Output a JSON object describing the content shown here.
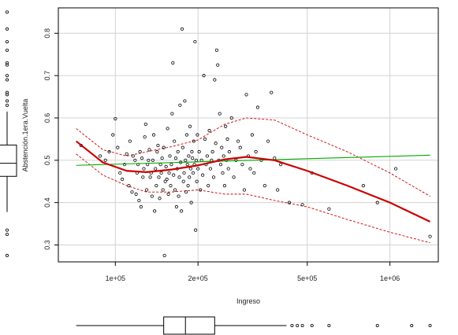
{
  "chart_data": {
    "type": "scatter",
    "xlabel": "Ingreso",
    "ylabel": "Abstención.1era.Vuelta",
    "x_scale": "log",
    "xlim": [
      62000,
      1500000
    ],
    "ylim": [
      0.26,
      0.86
    ],
    "x_ticks": [
      {
        "value": 100000,
        "label": "1e+05"
      },
      {
        "value": 200000,
        "label": "2e+05"
      },
      {
        "value": 500000,
        "label": "5e+05"
      },
      {
        "value": 1000000,
        "label": "1e+06"
      }
    ],
    "y_ticks": [
      {
        "value": 0.3,
        "label": "0.3"
      },
      {
        "value": 0.4,
        "label": "0.4"
      },
      {
        "value": 0.5,
        "label": "0.5"
      },
      {
        "value": 0.6,
        "label": "0.6"
      },
      {
        "value": 0.7,
        "label": "0.7"
      },
      {
        "value": 0.8,
        "label": "0.8"
      }
    ],
    "grid": true,
    "points": [
      [
        75000,
        0.535
      ],
      [
        88000,
        0.51
      ],
      [
        92000,
        0.5
      ],
      [
        95000,
        0.52
      ],
      [
        98000,
        0.56
      ],
      [
        100000,
        0.598
      ],
      [
        102000,
        0.53
      ],
      [
        104000,
        0.47
      ],
      [
        106000,
        0.455
      ],
      [
        108000,
        0.49
      ],
      [
        110000,
        0.515
      ],
      [
        112000,
        0.44
      ],
      [
        113000,
        0.545
      ],
      [
        115000,
        0.425
      ],
      [
        116000,
        0.51
      ],
      [
        118000,
        0.5
      ],
      [
        119000,
        0.42
      ],
      [
        120000,
        0.47
      ],
      [
        121000,
        0.49
      ],
      [
        122000,
        0.405
      ],
      [
        123000,
        0.52
      ],
      [
        124000,
        0.39
      ],
      [
        125000,
        0.505
      ],
      [
        126000,
        0.46
      ],
      [
        127000,
        0.48
      ],
      [
        128000,
        0.555
      ],
      [
        129000,
        0.585
      ],
      [
        130000,
        0.43
      ],
      [
        131000,
        0.49
      ],
      [
        132000,
        0.5
      ],
      [
        133000,
        0.525
      ],
      [
        134000,
        0.46
      ],
      [
        135000,
        0.47
      ],
      [
        136000,
        0.415
      ],
      [
        137000,
        0.5
      ],
      [
        138000,
        0.56
      ],
      [
        139000,
        0.38
      ],
      [
        140000,
        0.48
      ],
      [
        141000,
        0.44
      ],
      [
        142000,
        0.52
      ],
      [
        143000,
        0.535
      ],
      [
        144000,
        0.46
      ],
      [
        145000,
        0.41
      ],
      [
        146000,
        0.49
      ],
      [
        147000,
        0.47
      ],
      [
        148000,
        0.505
      ],
      [
        149000,
        0.43
      ],
      [
        150000,
        0.53
      ],
      [
        151000,
        0.275
      ],
      [
        152000,
        0.45
      ],
      [
        153000,
        0.485
      ],
      [
        154000,
        0.455
      ],
      [
        155000,
        0.575
      ],
      [
        156000,
        0.42
      ],
      [
        157000,
        0.47
      ],
      [
        158000,
        0.51
      ],
      [
        159000,
        0.44
      ],
      [
        160000,
        0.49
      ],
      [
        161000,
        0.61
      ],
      [
        162000,
        0.73
      ],
      [
        163000,
        0.465
      ],
      [
        164000,
        0.545
      ],
      [
        165000,
        0.43
      ],
      [
        166000,
        0.505
      ],
      [
        167000,
        0.39
      ],
      [
        168000,
        0.48
      ],
      [
        169000,
        0.52
      ],
      [
        170000,
        0.415
      ],
      [
        171000,
        0.46
      ],
      [
        172000,
        0.63
      ],
      [
        173000,
        0.495
      ],
      [
        174000,
        0.38
      ],
      [
        175000,
        0.81
      ],
      [
        176000,
        0.53
      ],
      [
        177000,
        0.45
      ],
      [
        178000,
        0.47
      ],
      [
        179000,
        0.64
      ],
      [
        180000,
        0.5
      ],
      [
        181000,
        0.425
      ],
      [
        182000,
        0.56
      ],
      [
        183000,
        0.49
      ],
      [
        184000,
        0.44
      ],
      [
        185000,
        0.51
      ],
      [
        186000,
        0.46
      ],
      [
        187000,
        0.58
      ],
      [
        188000,
        0.48
      ],
      [
        189000,
        0.4
      ],
      [
        190000,
        0.52
      ],
      [
        191000,
        0.505
      ],
      [
        192000,
        0.47
      ],
      [
        193000,
        0.545
      ],
      [
        194000,
        0.49
      ],
      [
        195000,
        0.78
      ],
      [
        196000,
        0.335
      ],
      [
        197000,
        0.5
      ],
      [
        198000,
        0.45
      ],
      [
        199000,
        0.56
      ],
      [
        200000,
        0.48
      ],
      [
        202000,
        0.52
      ],
      [
        204000,
        0.43
      ],
      [
        206000,
        0.5
      ],
      [
        208000,
        0.465
      ],
      [
        210000,
        0.7
      ],
      [
        212000,
        0.55
      ],
      [
        214000,
        0.49
      ],
      [
        216000,
        0.51
      ],
      [
        218000,
        0.44
      ],
      [
        220000,
        0.57
      ],
      [
        222000,
        0.48
      ],
      [
        224000,
        0.5
      ],
      [
        226000,
        0.52
      ],
      [
        228000,
        0.46
      ],
      [
        230000,
        0.69
      ],
      [
        232000,
        0.54
      ],
      [
        234000,
        0.76
      ],
      [
        236000,
        0.725
      ],
      [
        238000,
        0.5
      ],
      [
        240000,
        0.61
      ],
      [
        242000,
        0.49
      ],
      [
        244000,
        0.53
      ],
      [
        246000,
        0.47
      ],
      [
        248000,
        0.51
      ],
      [
        250000,
        0.44
      ],
      [
        252000,
        0.58
      ],
      [
        254000,
        0.5
      ],
      [
        256000,
        0.55
      ],
      [
        258000,
        0.48
      ],
      [
        260000,
        0.52
      ],
      [
        265000,
        0.6
      ],
      [
        270000,
        0.46
      ],
      [
        275000,
        0.5
      ],
      [
        280000,
        0.545
      ],
      [
        285000,
        0.53
      ],
      [
        290000,
        0.49
      ],
      [
        295000,
        0.43
      ],
      [
        300000,
        0.655
      ],
      [
        305000,
        0.51
      ],
      [
        310000,
        0.48
      ],
      [
        315000,
        0.56
      ],
      [
        320000,
        0.47
      ],
      [
        325000,
        0.52
      ],
      [
        330000,
        0.625
      ],
      [
        340000,
        0.5
      ],
      [
        350000,
        0.44
      ],
      [
        360000,
        0.545
      ],
      [
        370000,
        0.66
      ],
      [
        380000,
        0.505
      ],
      [
        390000,
        0.43
      ],
      [
        400000,
        0.49
      ],
      [
        430000,
        0.4
      ],
      [
        480000,
        0.395
      ],
      [
        520000,
        0.47
      ],
      [
        600000,
        0.385
      ],
      [
        800000,
        0.44
      ],
      [
        900000,
        0.4
      ],
      [
        1050000,
        0.48
      ],
      [
        1400000,
        0.32
      ]
    ],
    "linear_fit": {
      "color": "#00aa00",
      "x": [
        72000,
        1400000
      ],
      "y": [
        0.488,
        0.512
      ]
    },
    "smooth_fit": {
      "color": "#cc0000",
      "x": [
        72000,
        90000,
        110000,
        130000,
        160000,
        200000,
        250000,
        300000,
        380000,
        500000,
        700000,
        1000000,
        1400000
      ],
      "y": [
        0.545,
        0.495,
        0.475,
        0.472,
        0.478,
        0.488,
        0.502,
        0.508,
        0.5,
        0.475,
        0.44,
        0.4,
        0.355
      ]
    },
    "smooth_band_upper": {
      "color": "#cc0000",
      "x": [
        72000,
        90000,
        110000,
        130000,
        160000,
        200000,
        250000,
        300000,
        380000,
        500000,
        700000,
        1000000,
        1400000
      ],
      "y": [
        0.575,
        0.525,
        0.51,
        0.52,
        0.532,
        0.548,
        0.585,
        0.6,
        0.595,
        0.56,
        0.52,
        0.47,
        0.415
      ]
    },
    "smooth_band_lower": {
      "color": "#cc0000",
      "x": [
        72000,
        90000,
        110000,
        130000,
        160000,
        200000,
        250000,
        300000,
        380000,
        500000,
        700000,
        1000000,
        1400000
      ],
      "y": [
        0.515,
        0.465,
        0.44,
        0.425,
        0.425,
        0.43,
        0.42,
        0.42,
        0.405,
        0.39,
        0.36,
        0.33,
        0.305
      ]
    },
    "x_boxplot": {
      "min": 72000,
      "q1": 150000,
      "median": 180000,
      "q3": 230000,
      "whisker_high": 420000,
      "outliers": [
        440000,
        460000,
        480000,
        520000,
        600000,
        900000,
        1200000,
        1400000
      ]
    },
    "y_boxplot": {
      "whisker_low": 0.378,
      "q1": 0.462,
      "median": 0.493,
      "q3": 0.536,
      "whisker_high": 0.615,
      "outliers": [
        0.275,
        0.325,
        0.335,
        0.63,
        0.64,
        0.655,
        0.66,
        0.69,
        0.7,
        0.725,
        0.73,
        0.76,
        0.78,
        0.81,
        0.85
      ]
    }
  }
}
